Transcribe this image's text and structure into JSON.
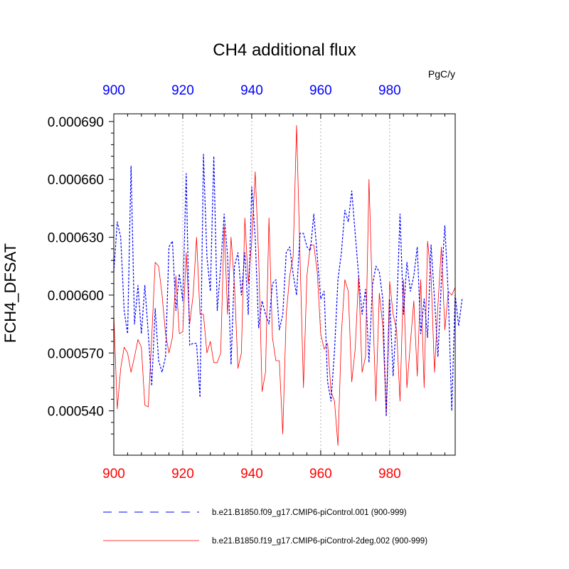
{
  "chart_data": {
    "type": "line",
    "title": "CH4 additional flux",
    "units": "PgC/y",
    "ylabel": "FCH4_DFSAT",
    "xlim": [
      900,
      999
    ],
    "ylim": [
      0.000517,
      0.000694
    ],
    "xticks": [
      900,
      920,
      940,
      960,
      980
    ],
    "xtick_labels": [
      "900",
      "920",
      "940",
      "960",
      "980"
    ],
    "yticks": [
      0.00054,
      0.00057,
      0.0006,
      0.00063,
      0.00066,
      0.00069
    ],
    "ytick_labels": [
      "0.000540",
      "0.000570",
      "0.000600",
      "0.000630",
      "0.000660",
      "0.000690"
    ],
    "grid": "vertical dotted at x ticks",
    "top_axis_color": "#0000ff",
    "bottom_axis_color": "#ff0000",
    "legend_position": "bottom",
    "series": [
      {
        "name": "b.e21.B1850.f09_g17.CMIP6-piControl.001 (900-999)",
        "color": "#0000ff",
        "style": "dashed",
        "x_start": 900,
        "values": [
          0.000612,
          0.000638,
          0.00063,
          0.000592,
          0.00058,
          0.000667,
          0.000585,
          0.000605,
          0.00058,
          0.000605,
          0.00058,
          0.000553,
          0.000593,
          0.000566,
          0.00056,
          0.000568,
          0.000625,
          0.000628,
          0.000592,
          0.000611,
          0.000597,
          0.000663,
          0.000574,
          0.000575,
          0.000575,
          0.000547,
          0.000673,
          0.00062,
          0.000602,
          0.000672,
          0.000592,
          0.000615,
          0.000642,
          0.00062,
          0.000564,
          0.000615,
          0.000622,
          0.0006,
          0.000622,
          0.00059,
          0.000656,
          0.00063,
          0.000583,
          0.000597,
          0.00059,
          0.000585,
          0.000606,
          0.000608,
          0.000582,
          0.00059,
          0.000622,
          0.000625,
          0.000611,
          0.0006,
          0.000632,
          0.000632,
          0.000625,
          0.000623,
          0.000642,
          0.00062,
          0.000598,
          0.000602,
          0.000555,
          0.000545,
          0.000571,
          0.000608,
          0.000622,
          0.000644,
          0.000638,
          0.000654,
          0.000632,
          0.00061,
          0.00059,
          0.000603,
          0.000565,
          0.000605,
          0.000615,
          0.000612,
          0.000598,
          0.000537,
          0.000598,
          0.000558,
          0.00059,
          0.000642,
          0.00059,
          0.000617,
          0.000602,
          0.00061,
          0.000625,
          0.00058,
          0.000598,
          0.000578,
          0.000626,
          0.000598,
          0.000568,
          0.000608,
          0.000636,
          0.0006,
          0.00054,
          0.0006,
          0.000584,
          0.000598
        ]
      },
      {
        "name": "b.e21.B1850.f19_g17.CMIP6-piControl-2deg.002 (900-999)",
        "color": "#ff0000",
        "style": "solid",
        "x_start": 900,
        "values": [
          0.00059,
          0.000541,
          0.000562,
          0.000573,
          0.00057,
          0.00056,
          0.000568,
          0.000577,
          0.000573,
          0.000543,
          0.000542,
          0.000578,
          0.000617,
          0.000615,
          0.0006,
          0.00058,
          0.00057,
          0.000578,
          0.00061,
          0.00058,
          0.000581,
          0.000622,
          0.000585,
          0.0006,
          0.00063,
          0.00059,
          0.00059,
          0.00057,
          0.000576,
          0.000565,
          0.000565,
          0.00057,
          0.000636,
          0.00059,
          0.00063,
          0.000605,
          0.000562,
          0.00057,
          0.00064,
          0.000606,
          0.000628,
          0.000664,
          0.00062,
          0.00055,
          0.00056,
          0.00064,
          0.000578,
          0.000566,
          0.000566,
          0.000528,
          0.00059,
          0.00061,
          0.00062,
          0.000688,
          0.00062,
          0.000552,
          0.00061,
          0.000626,
          0.000626,
          0.000612,
          0.00058,
          0.000572,
          0.000575,
          0.00055,
          0.000545,
          0.000522,
          0.00058,
          0.000608,
          0.000602,
          0.000555,
          0.000572,
          0.00061,
          0.00056,
          0.000568,
          0.00066,
          0.000598,
          0.000545,
          0.000601,
          0.000584,
          0.000538,
          0.000607,
          0.00059,
          0.000582,
          0.000545,
          0.000608,
          0.000552,
          0.000575,
          0.000597,
          0.000558,
          0.000608,
          0.000552,
          0.000628,
          0.00061,
          0.00056,
          0.000595,
          0.000625,
          0.000582,
          0.000602,
          0.0006,
          0.000604
        ]
      }
    ]
  }
}
